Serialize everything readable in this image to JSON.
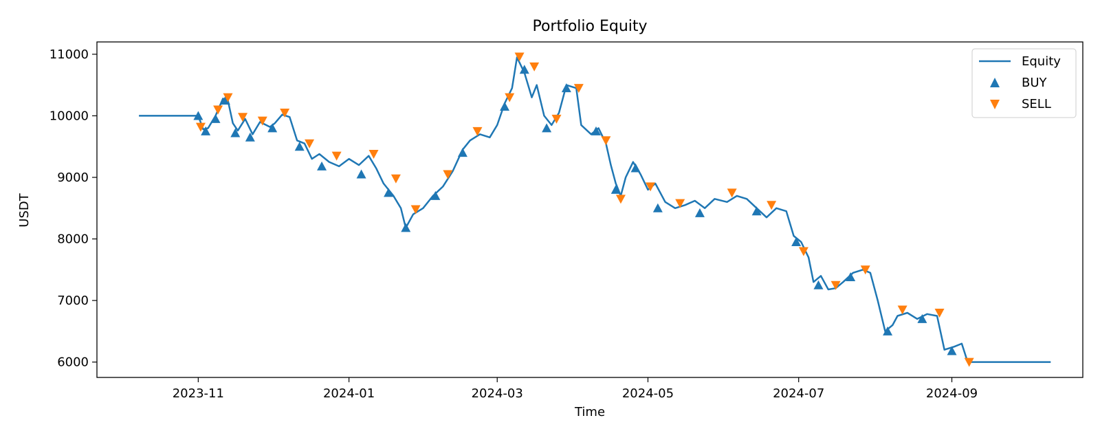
{
  "chart_data": {
    "type": "line",
    "title": "Portfolio Equity",
    "xlabel": "Time",
    "ylabel": "USDT",
    "x_range": [
      "2023-09-21",
      "2024-10-24"
    ],
    "ylim": [
      5750,
      11200
    ],
    "x_ticks": [
      "2023-11",
      "2024-01",
      "2024-03",
      "2024-05",
      "2024-07",
      "2024-09"
    ],
    "y_ticks": [
      6000,
      7000,
      8000,
      9000,
      10000,
      11000
    ],
    "legend_position": "top-right",
    "grid": false,
    "series": [
      {
        "name": "Equity",
        "kind": "line",
        "color": "#1f77b4",
        "points": [
          [
            "2023-10-08",
            10000
          ],
          [
            "2023-11-01",
            10000
          ],
          [
            "2023-11-03",
            9780
          ],
          [
            "2023-11-05",
            9800
          ],
          [
            "2023-11-08",
            10000
          ],
          [
            "2023-11-11",
            10280
          ],
          [
            "2023-11-13",
            10250
          ],
          [
            "2023-11-15",
            9880
          ],
          [
            "2023-11-17",
            9760
          ],
          [
            "2023-11-20",
            9950
          ],
          [
            "2023-11-23",
            9700
          ],
          [
            "2023-11-26",
            9900
          ],
          [
            "2023-11-30",
            9820
          ],
          [
            "2023-12-02",
            9880
          ],
          [
            "2023-12-05",
            10020
          ],
          [
            "2023-12-08",
            9980
          ],
          [
            "2023-12-11",
            9600
          ],
          [
            "2023-12-14",
            9550
          ],
          [
            "2023-12-17",
            9300
          ],
          [
            "2023-12-20",
            9380
          ],
          [
            "2023-12-24",
            9250
          ],
          [
            "2023-12-28",
            9180
          ],
          [
            "2024-01-01",
            9300
          ],
          [
            "2024-01-05",
            9200
          ],
          [
            "2024-01-09",
            9350
          ],
          [
            "2024-01-12",
            9150
          ],
          [
            "2024-01-15",
            8900
          ],
          [
            "2024-01-19",
            8700
          ],
          [
            "2024-01-22",
            8500
          ],
          [
            "2024-01-24",
            8180
          ],
          [
            "2024-01-27",
            8400
          ],
          [
            "2024-01-31",
            8500
          ],
          [
            "2024-02-04",
            8700
          ],
          [
            "2024-02-08",
            8850
          ],
          [
            "2024-02-12",
            9100
          ],
          [
            "2024-02-16",
            9450
          ],
          [
            "2024-02-19",
            9600
          ],
          [
            "2024-02-23",
            9700
          ],
          [
            "2024-02-27",
            9650
          ],
          [
            "2024-03-01",
            9850
          ],
          [
            "2024-03-04",
            10200
          ],
          [
            "2024-03-07",
            10450
          ],
          [
            "2024-03-09",
            10950
          ],
          [
            "2024-03-12",
            10700
          ],
          [
            "2024-03-15",
            10300
          ],
          [
            "2024-03-17",
            10500
          ],
          [
            "2024-03-20",
            10000
          ],
          [
            "2024-03-23",
            9850
          ],
          [
            "2024-03-26",
            10050
          ],
          [
            "2024-03-29",
            10500
          ],
          [
            "2024-04-02",
            10450
          ],
          [
            "2024-04-04",
            9850
          ],
          [
            "2024-04-08",
            9700
          ],
          [
            "2024-04-11",
            9800
          ],
          [
            "2024-04-14",
            9550
          ],
          [
            "2024-04-16",
            9200
          ],
          [
            "2024-04-18",
            8900
          ],
          [
            "2024-04-20",
            8700
          ],
          [
            "2024-04-22",
            9000
          ],
          [
            "2024-04-25",
            9250
          ],
          [
            "2024-04-28",
            9050
          ],
          [
            "2024-05-01",
            8800
          ],
          [
            "2024-05-04",
            8900
          ],
          [
            "2024-05-08",
            8600
          ],
          [
            "2024-05-12",
            8500
          ],
          [
            "2024-05-16",
            8550
          ],
          [
            "2024-05-20",
            8620
          ],
          [
            "2024-05-24",
            8500
          ],
          [
            "2024-05-28",
            8650
          ],
          [
            "2024-06-02",
            8600
          ],
          [
            "2024-06-06",
            8700
          ],
          [
            "2024-06-10",
            8650
          ],
          [
            "2024-06-14",
            8500
          ],
          [
            "2024-06-18",
            8350
          ],
          [
            "2024-06-22",
            8500
          ],
          [
            "2024-06-26",
            8450
          ],
          [
            "2024-06-29",
            8050
          ],
          [
            "2024-07-02",
            7950
          ],
          [
            "2024-07-05",
            7700
          ],
          [
            "2024-07-07",
            7300
          ],
          [
            "2024-07-10",
            7400
          ],
          [
            "2024-07-13",
            7180
          ],
          [
            "2024-07-16",
            7200
          ],
          [
            "2024-07-19",
            7300
          ],
          [
            "2024-07-23",
            7450
          ],
          [
            "2024-07-27",
            7500
          ],
          [
            "2024-07-30",
            7450
          ],
          [
            "2024-08-02",
            7000
          ],
          [
            "2024-08-05",
            6500
          ],
          [
            "2024-08-08",
            6600
          ],
          [
            "2024-08-10",
            6750
          ],
          [
            "2024-08-14",
            6800
          ],
          [
            "2024-08-18",
            6700
          ],
          [
            "2024-08-22",
            6780
          ],
          [
            "2024-08-26",
            6750
          ],
          [
            "2024-08-29",
            6200
          ],
          [
            "2024-09-02",
            6250
          ],
          [
            "2024-09-05",
            6300
          ],
          [
            "2024-09-07",
            6050
          ],
          [
            "2024-09-08",
            6000
          ],
          [
            "2024-10-11",
            6000
          ]
        ]
      },
      {
        "name": "BUY",
        "kind": "scatter",
        "marker": "triangle-up",
        "color": "#1f77b4",
        "points": [
          [
            "2023-11-01",
            10000
          ],
          [
            "2023-11-04",
            9750
          ],
          [
            "2023-11-08",
            9950
          ],
          [
            "2023-11-12",
            10250
          ],
          [
            "2023-11-16",
            9720
          ],
          [
            "2023-11-22",
            9650
          ],
          [
            "2023-12-01",
            9800
          ],
          [
            "2023-12-12",
            9500
          ],
          [
            "2023-12-21",
            9180
          ],
          [
            "2024-01-06",
            9050
          ],
          [
            "2024-01-17",
            8750
          ],
          [
            "2024-01-24",
            8180
          ],
          [
            "2024-02-05",
            8700
          ],
          [
            "2024-02-16",
            9400
          ],
          [
            "2024-03-04",
            10150
          ],
          [
            "2024-03-12",
            10750
          ],
          [
            "2024-03-21",
            9800
          ],
          [
            "2024-03-29",
            10450
          ],
          [
            "2024-04-10",
            9750
          ],
          [
            "2024-04-18",
            8800
          ],
          [
            "2024-04-26",
            9150
          ],
          [
            "2024-05-05",
            8500
          ],
          [
            "2024-05-22",
            8420
          ],
          [
            "2024-06-14",
            8450
          ],
          [
            "2024-06-30",
            7950
          ],
          [
            "2024-07-09",
            7250
          ],
          [
            "2024-07-22",
            7380
          ],
          [
            "2024-08-06",
            6500
          ],
          [
            "2024-08-20",
            6700
          ],
          [
            "2024-09-01",
            6180
          ]
        ]
      },
      {
        "name": "SELL",
        "kind": "scatter",
        "marker": "triangle-down",
        "color": "#ff7f0e",
        "points": [
          [
            "2023-11-02",
            9820
          ],
          [
            "2023-11-09",
            10100
          ],
          [
            "2023-11-13",
            10300
          ],
          [
            "2023-11-19",
            9980
          ],
          [
            "2023-11-27",
            9920
          ],
          [
            "2023-12-06",
            10050
          ],
          [
            "2023-12-16",
            9550
          ],
          [
            "2023-12-27",
            9350
          ],
          [
            "2024-01-11",
            9380
          ],
          [
            "2024-01-20",
            8980
          ],
          [
            "2024-01-28",
            8480
          ],
          [
            "2024-02-10",
            9050
          ],
          [
            "2024-02-22",
            9750
          ],
          [
            "2024-03-06",
            10300
          ],
          [
            "2024-03-10",
            10960
          ],
          [
            "2024-03-16",
            10800
          ],
          [
            "2024-03-25",
            9950
          ],
          [
            "2024-04-03",
            10450
          ],
          [
            "2024-04-14",
            9600
          ],
          [
            "2024-04-20",
            8650
          ],
          [
            "2024-05-02",
            8850
          ],
          [
            "2024-05-14",
            8580
          ],
          [
            "2024-06-04",
            8750
          ],
          [
            "2024-06-20",
            8550
          ],
          [
            "2024-07-03",
            7800
          ],
          [
            "2024-07-16",
            7250
          ],
          [
            "2024-07-28",
            7500
          ],
          [
            "2024-08-12",
            6850
          ],
          [
            "2024-08-27",
            6800
          ],
          [
            "2024-09-08",
            6000
          ]
        ]
      }
    ]
  }
}
